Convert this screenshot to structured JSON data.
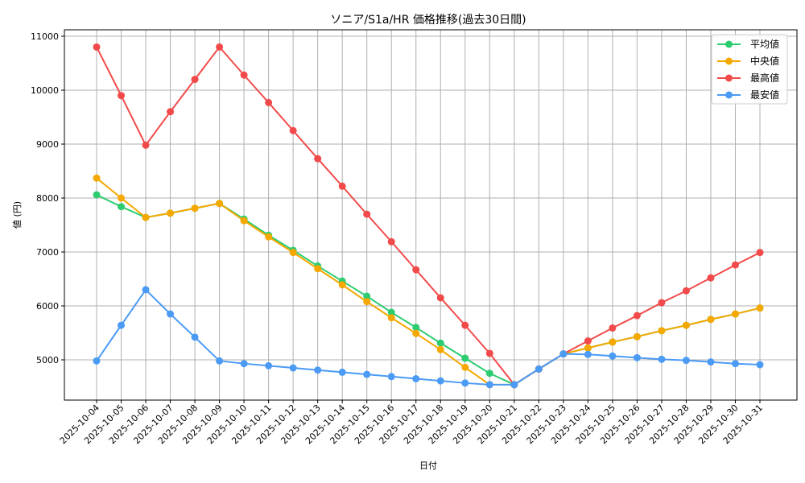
{
  "chart_data": {
    "type": "line",
    "title": "ソニア/S1a/HR 価格推移(過去30日間)",
    "xlabel": "日付",
    "ylabel": "値 (円)",
    "ylim": [
      4250,
      11100
    ],
    "yticks": [
      5000,
      6000,
      7000,
      8000,
      9000,
      10000,
      11000
    ],
    "grid": true,
    "legend_position": "upper right",
    "categories": [
      "2025-10-04",
      "2025-10-05",
      "2025-10-06",
      "2025-10-07",
      "2025-10-08",
      "2025-10-09",
      "2025-10-10",
      "2025-10-11",
      "2025-10-12",
      "2025-10-13",
      "2025-10-14",
      "2025-10-15",
      "2025-10-16",
      "2025-10-17",
      "2025-10-18",
      "2025-10-19",
      "2025-10-20",
      "2025-10-21",
      "2025-10-22",
      "2025-10-23",
      "2025-10-24",
      "2025-10-25",
      "2025-10-26",
      "2025-10-27",
      "2025-10-28",
      "2025-10-29",
      "2025-10-30",
      "2025-10-31"
    ],
    "series": [
      {
        "name": "平均値",
        "color": "#2ecc71",
        "values": [
          8060,
          7840,
          7640,
          7720,
          7810,
          7900,
          7610,
          7310,
          7030,
          6740,
          6460,
          6180,
          5880,
          5600,
          5310,
          5030,
          4750,
          4540,
          4830,
          5110,
          5220,
          5330,
          5430,
          5540,
          5640,
          5750,
          5850,
          5960
        ]
      },
      {
        "name": "中央値",
        "color": "#f5a800",
        "values": [
          8370,
          8000,
          7640,
          7720,
          7810,
          7900,
          7580,
          7280,
          6990,
          6690,
          6390,
          6080,
          5780,
          5490,
          5190,
          4860,
          4540,
          4540,
          4830,
          5110,
          5220,
          5330,
          5430,
          5540,
          5640,
          5750,
          5850,
          5960
        ]
      },
      {
        "name": "最高値",
        "color": "#f24a4a",
        "values": [
          10800,
          9900,
          8980,
          9600,
          10200,
          10800,
          10280,
          9770,
          9250,
          8730,
          8220,
          7700,
          7190,
          6670,
          6150,
          5640,
          5120,
          4540,
          4830,
          5110,
          5350,
          5590,
          5820,
          6060,
          6280,
          6520,
          6760,
          6990
        ]
      },
      {
        "name": "最安値",
        "color": "#4b9bf5",
        "values": [
          4980,
          5640,
          6300,
          5850,
          5420,
          4980,
          4930,
          4890,
          4850,
          4810,
          4770,
          4730,
          4690,
          4650,
          4610,
          4570,
          4540,
          4540,
          4830,
          5110,
          5100,
          5070,
          5040,
          5010,
          4990,
          4960,
          4930,
          4910
        ]
      }
    ]
  }
}
